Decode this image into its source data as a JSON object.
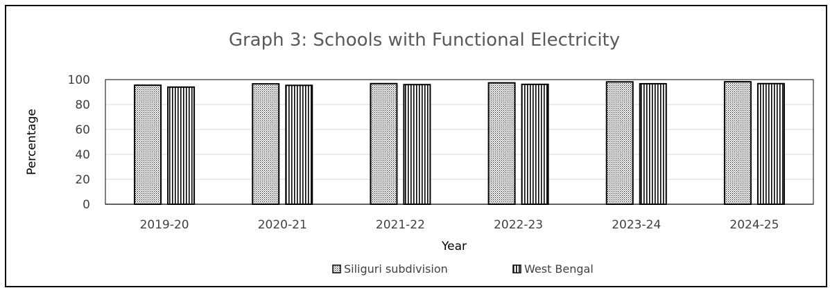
{
  "chart_data": {
    "type": "bar",
    "title": "Graph 3: Schools with Functional Electricity",
    "xlabel": "Year",
    "ylabel": "Percentage",
    "categories": [
      "2019-20",
      "2020-21",
      "2021-22",
      "2022-23",
      "2023-24",
      "2024-25"
    ],
    "series": [
      {
        "name": "Siliguri subdivision",
        "values": [
          95.5,
          96.6,
          96.8,
          97.4,
          98.2,
          98.3
        ],
        "pattern": "dots"
      },
      {
        "name": "West Bengal",
        "values": [
          94.0,
          95.4,
          96.0,
          96.2,
          96.7,
          96.8
        ],
        "pattern": "vertical-lines"
      }
    ],
    "ylim": [
      0,
      100
    ],
    "yticks": [
      "0",
      "20",
      "40",
      "60",
      "80",
      "100"
    ],
    "grid": true,
    "legend_position": "bottom",
    "colors": {
      "bar_fill": "#ffffff",
      "bar_pattern": "#000000",
      "gridline": "#d9d9d9",
      "title": "#595959"
    }
  }
}
